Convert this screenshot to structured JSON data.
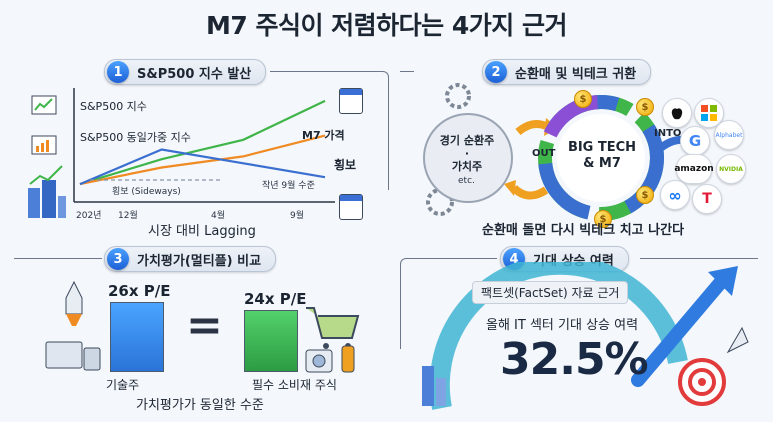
{
  "title": "M7 주식이 저렴하다는 4가지 근거",
  "sections": {
    "s1": {
      "num": "1",
      "label": "S&P500 지수 발산"
    },
    "s2": {
      "num": "2",
      "label": "순환매 및 빅테크 귀환"
    },
    "s3": {
      "num": "3",
      "label": "가치평가(멀티플) 비교"
    },
    "s4": {
      "num": "4",
      "label": "기대 상승 여력"
    }
  },
  "panel1": {
    "sp500": "S&P500 지수",
    "equal_weight": "S&P500 동일가중 지수",
    "m7": "M7 가격",
    "sideways_label": "횡보",
    "sideways_note": "횡보 (Sideways)",
    "last_year_level": "작년 9월 수준",
    "x_ticks": [
      "202년",
      "12월",
      "4월",
      "9월"
    ],
    "caption": "시장 대비 Lagging"
  },
  "panel2": {
    "left_circle": "경기 순환주\n·\n가치주",
    "left_etc": "etc.",
    "out": "OUT",
    "center": "BIG TECH\n& M7",
    "into": "INTO",
    "logos": [
      "",
      "",
      "G",
      "Alphabet",
      "amazon",
      "NVIDIA",
      "∞",
      "T"
    ],
    "caption": "순환매 돌면 다시 빅테크 치고 나간다"
  },
  "panel3": {
    "left_pe": "26x P/E",
    "right_pe": "24x P/E",
    "equals": "=",
    "left_label": "기술주",
    "right_label": "필수 소비재 주식",
    "caption": "가치평가가 동일한 수준"
  },
  "panel4": {
    "source": "팩트셋(FactSet) 자료 근거",
    "desc": "올해 IT 섹터 기대 상승 여력",
    "value": "32.5%"
  },
  "colors": {
    "green": "#3fb54a",
    "blue": "#3a6fd0",
    "orange": "#f08a22",
    "accent": "#1d5fd6"
  },
  "chart_data": {
    "type": "line",
    "x": [
      "202년",
      "12월",
      "4월",
      "9월"
    ],
    "series": [
      {
        "name": "S&P500 지수",
        "values": [
          1.0,
          1.18,
          1.32,
          1.6
        ]
      },
      {
        "name": "S&P500 동일가중 지수",
        "values": [
          1.0,
          1.12,
          1.2,
          1.35
        ]
      },
      {
        "name": "M7 가격",
        "values": [
          1.0,
          1.25,
          1.15,
          1.05
        ]
      }
    ],
    "grid": false
  }
}
